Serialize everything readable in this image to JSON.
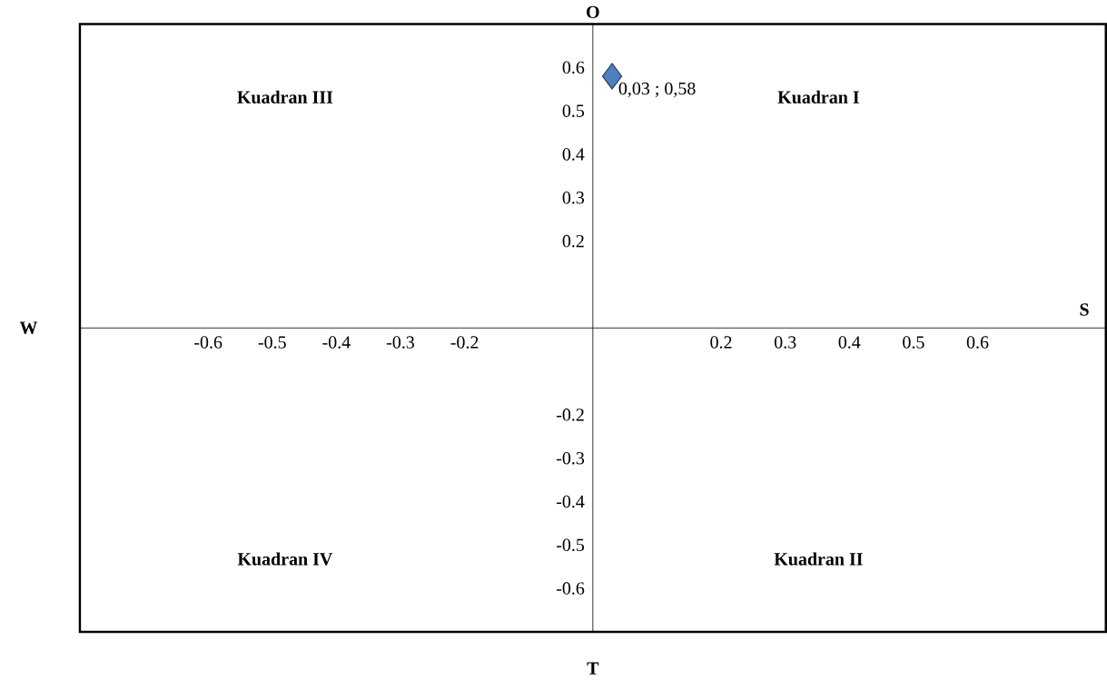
{
  "chart_data": {
    "type": "scatter",
    "x": [
      0.03
    ],
    "series": [
      {
        "color": "#4f81bd",
        "values": [
          0.58
        ],
        "value_labels": [
          "0,03 ; 0,58"
        ]
      }
    ],
    "xlim": [
      -0.8,
      0.8
    ],
    "ylim": [
      -0.7,
      0.7
    ],
    "xticks": [
      -0.6,
      -0.5,
      -0.4,
      -0.3,
      -0.2,
      0.2,
      0.3,
      0.4,
      0.5,
      0.6
    ],
    "yticks": [
      -0.6,
      -0.5,
      -0.4,
      -0.3,
      -0.2,
      0.2,
      0.3,
      0.4,
      0.5,
      0.6
    ],
    "marker": "diamond",
    "grid": false,
    "annotations": [
      "O",
      "T",
      "W",
      "S",
      "Kuadran I",
      "Kuadran II",
      "Kuadran III",
      "Kuadran IV"
    ]
  }
}
